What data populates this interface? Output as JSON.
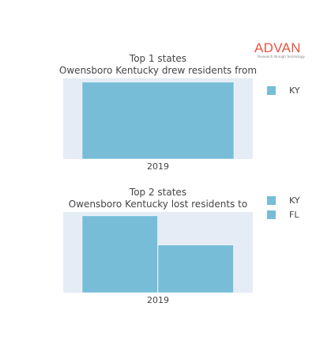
{
  "logo": {
    "text": "ADVAN",
    "tagline": "Research through Technology"
  },
  "chart_data": [
    {
      "type": "bar",
      "stacked": true,
      "title": "Top 1 states",
      "subtitle": "Owensboro Kentucky drew residents from",
      "categories": [
        "2019"
      ],
      "series": [
        {
          "name": "KY",
          "values": [
            1
          ]
        }
      ],
      "ylim": [
        0,
        1.05
      ],
      "grid": false,
      "legend": "right",
      "bar_color": "#77bdd8",
      "plot_bg": "#e5ecf6"
    },
    {
      "type": "bar",
      "stacked": false,
      "title": "Top 2 states",
      "subtitle": "Owensboro Kentucky lost residents to",
      "categories": [
        "2019"
      ],
      "series": [
        {
          "name": "KY",
          "values": [
            1
          ]
        },
        {
          "name": "FL",
          "values": [
            0.62
          ]
        }
      ],
      "ylim": [
        0,
        1.05
      ],
      "grid": false,
      "legend": "right",
      "bar_color": "#77bdd8",
      "plot_bg": "#e5ecf6"
    }
  ]
}
